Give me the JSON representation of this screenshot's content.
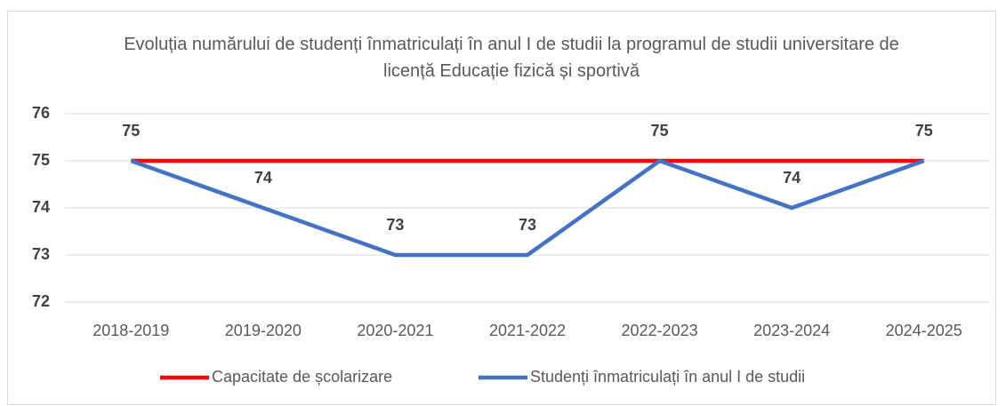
{
  "chart_data": {
    "type": "line",
    "title": "Evoluția numărului de studenți înmatriculați în anul I de studii la programul de studii universitare de licență Educație fizică și sportivă",
    "categories": [
      "2018-2019",
      "2019-2020",
      "2020-2021",
      "2021-2022",
      "2022-2023",
      "2023-2024",
      "2024-2025"
    ],
    "series": [
      {
        "name": "Capacitate de școlarizare",
        "color": "#ff0000",
        "values": [
          75,
          75,
          75,
          75,
          75,
          75,
          75
        ]
      },
      {
        "name": "Studenți înmatriculați în anul I de studii",
        "color": "#4472c4",
        "values": [
          75,
          74,
          73,
          73,
          75,
          74,
          75
        ],
        "data_labels": true
      }
    ],
    "ylim": [
      72,
      76
    ],
    "yticks": [
      72,
      73,
      74,
      75,
      76
    ],
    "grid": true,
    "legend": "bottom"
  }
}
